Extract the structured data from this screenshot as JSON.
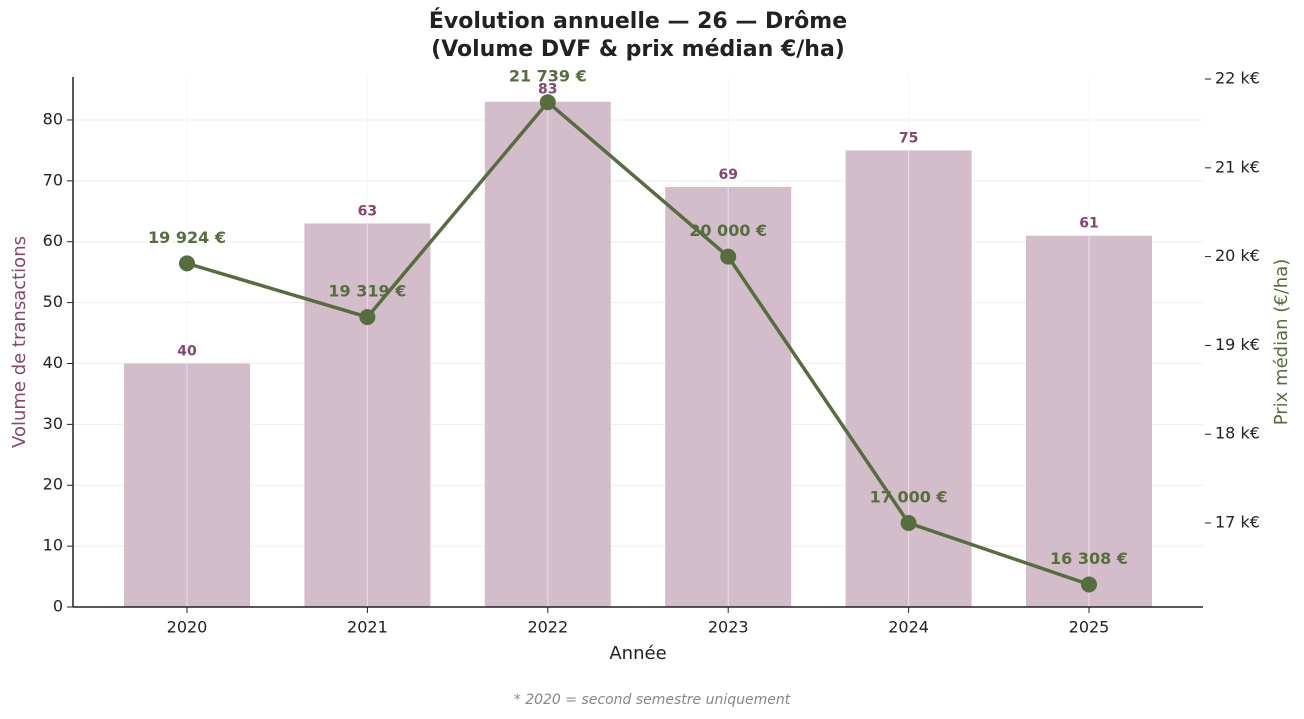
{
  "chart_data": {
    "type": "bar",
    "title": [
      "Évolution annuelle — 26 — Drôme",
      "(Volume DVF & prix médian €/ha)"
    ],
    "xlabel": "Année",
    "ylabel": "Volume de transactions",
    "y2label": "Prix médian (€/ha)",
    "footnote": "* 2020 = second semestre uniquement",
    "categories": [
      "2020",
      "2021",
      "2022",
      "2023",
      "2024",
      "2025"
    ],
    "series": [
      {
        "type": "bar",
        "color": "#d4bdcb",
        "label_color": "#86466f",
        "values": [
          40,
          63,
          83,
          69,
          75,
          61
        ]
      },
      {
        "type": "line",
        "axis": "y2",
        "color": "#566e3d",
        "values": [
          19924,
          19319,
          21739,
          20000,
          17000,
          16308
        ],
        "value_labels": [
          "19 924 €",
          "19 319 €",
          "21 739 €",
          "20 000 €",
          "17 000 €",
          "16 308 €"
        ]
      }
    ],
    "ylim": [
      0,
      87.06
    ],
    "yticks": [
      0,
      10,
      20,
      30,
      40,
      50,
      60,
      70,
      80
    ],
    "y2lim": [
      16054,
      22023
    ],
    "y2ticks": [
      {
        "value": 17000,
        "label": "17 k€"
      },
      {
        "value": 18000,
        "label": "18 k€"
      },
      {
        "value": 19000,
        "label": "19 k€"
      },
      {
        "value": 20000,
        "label": "20 k€"
      },
      {
        "value": 21000,
        "label": "21 k€"
      },
      {
        "value": 22000,
        "label": "22 k€"
      }
    ],
    "grid": true
  }
}
